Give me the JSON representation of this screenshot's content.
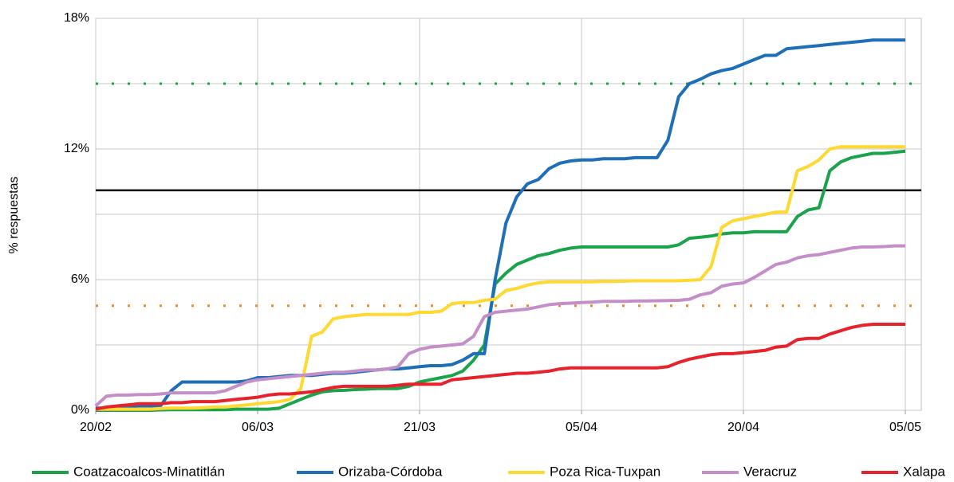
{
  "chart_data": {
    "type": "line",
    "y_label": "% respuestas",
    "categories": [
      "20/02",
      null,
      null,
      null,
      null,
      null,
      null,
      null,
      null,
      null,
      null,
      null,
      null,
      null,
      null,
      "06/03",
      null,
      null,
      null,
      null,
      null,
      null,
      null,
      null,
      null,
      null,
      null,
      null,
      null,
      null,
      "21/03",
      null,
      null,
      null,
      null,
      null,
      null,
      null,
      null,
      null,
      null,
      null,
      null,
      null,
      null,
      "05/04",
      null,
      null,
      null,
      null,
      null,
      null,
      null,
      null,
      null,
      null,
      null,
      null,
      null,
      null,
      "20/04",
      null,
      null,
      null,
      null,
      null,
      null,
      null,
      null,
      null,
      null,
      null,
      null,
      null,
      null,
      "05/05"
    ],
    "series": [
      {
        "name": "Coatzacoalcos-Minatitlán",
        "color": "#1ba34c",
        "values": [
          0,
          0,
          0,
          0,
          0,
          0,
          0.02,
          0.03,
          0.03,
          0.03,
          0.03,
          0.03,
          0.03,
          0.05,
          0.05,
          0.05,
          0.05,
          0.1,
          0.3,
          0.5,
          0.7,
          0.85,
          0.9,
          0.92,
          0.95,
          0.97,
          1.0,
          1.0,
          1.0,
          1.1,
          1.3,
          1.4,
          1.5,
          1.6,
          1.8,
          2.3,
          3.0,
          5.8,
          6.3,
          6.7,
          6.9,
          7.1,
          7.2,
          7.35,
          7.45,
          7.5,
          7.5,
          7.5,
          7.5,
          7.5,
          7.5,
          7.5,
          7.5,
          7.5,
          7.6,
          7.9,
          7.95,
          8.0,
          8.1,
          8.15,
          8.15,
          8.2,
          8.2,
          8.2,
          8.2,
          8.9,
          9.2,
          9.3,
          11.0,
          11.4,
          11.6,
          11.7,
          11.8,
          11.8,
          11.85,
          11.9
        ]
      },
      {
        "name": "Orizaba-Córdoba",
        "color": "#1f6fb8",
        "values": [
          0.1,
          0.1,
          0.1,
          0.15,
          0.2,
          0.2,
          0.2,
          0.9,
          1.3,
          1.3,
          1.3,
          1.3,
          1.3,
          1.3,
          1.35,
          1.5,
          1.5,
          1.55,
          1.6,
          1.6,
          1.6,
          1.65,
          1.7,
          1.7,
          1.75,
          1.8,
          1.85,
          1.9,
          1.9,
          1.95,
          2.0,
          2.05,
          2.05,
          2.1,
          2.3,
          2.6,
          2.6,
          6.0,
          8.6,
          9.8,
          10.4,
          10.6,
          11.1,
          11.35,
          11.45,
          11.5,
          11.5,
          11.55,
          11.55,
          11.55,
          11.6,
          11.6,
          11.6,
          12.4,
          14.4,
          15.0,
          15.2,
          15.45,
          15.6,
          15.7,
          15.9,
          16.1,
          16.3,
          16.3,
          16.6,
          16.65,
          16.7,
          16.75,
          16.8,
          16.85,
          16.9,
          16.95,
          17.0,
          17.0,
          17.0,
          17.0
        ]
      },
      {
        "name": "Poza Rica-Tuxpan",
        "color": "#ffd832",
        "values": [
          0.05,
          0.05,
          0.05,
          0.05,
          0.05,
          0.05,
          0.08,
          0.1,
          0.1,
          0.1,
          0.12,
          0.15,
          0.15,
          0.2,
          0.25,
          0.3,
          0.35,
          0.4,
          0.5,
          1.0,
          3.4,
          3.6,
          4.2,
          4.3,
          4.35,
          4.4,
          4.4,
          4.4,
          4.4,
          4.4,
          4.5,
          4.5,
          4.55,
          4.9,
          4.95,
          4.95,
          5.05,
          5.1,
          5.5,
          5.6,
          5.75,
          5.85,
          5.9,
          5.9,
          5.9,
          5.9,
          5.9,
          5.92,
          5.92,
          5.93,
          5.95,
          5.95,
          5.95,
          5.95,
          5.95,
          5.97,
          6.0,
          6.6,
          8.4,
          8.7,
          8.8,
          8.9,
          9.0,
          9.1,
          9.1,
          11.0,
          11.2,
          11.5,
          12.0,
          12.1,
          12.1,
          12.1,
          12.1,
          12.1,
          12.1,
          12.1
        ]
      },
      {
        "name": "Veracruz",
        "color": "#c48fc8",
        "values": [
          0.2,
          0.65,
          0.7,
          0.7,
          0.72,
          0.72,
          0.75,
          0.8,
          0.8,
          0.8,
          0.8,
          0.8,
          0.9,
          1.1,
          1.3,
          1.4,
          1.45,
          1.5,
          1.55,
          1.6,
          1.65,
          1.7,
          1.75,
          1.75,
          1.8,
          1.85,
          1.85,
          1.9,
          2.0,
          2.6,
          2.8,
          2.9,
          2.95,
          3.0,
          3.05,
          3.4,
          4.3,
          4.5,
          4.55,
          4.6,
          4.65,
          4.75,
          4.85,
          4.9,
          4.92,
          4.95,
          4.97,
          5.0,
          5.0,
          5.0,
          5.02,
          5.02,
          5.03,
          5.04,
          5.05,
          5.1,
          5.3,
          5.4,
          5.7,
          5.8,
          5.85,
          6.1,
          6.4,
          6.7,
          6.8,
          7.0,
          7.1,
          7.15,
          7.25,
          7.35,
          7.45,
          7.5,
          7.5,
          7.52,
          7.55,
          7.55
        ]
      },
      {
        "name": "Xalapa",
        "color": "#e8222b",
        "values": [
          0.05,
          0.15,
          0.2,
          0.25,
          0.3,
          0.3,
          0.3,
          0.35,
          0.35,
          0.4,
          0.4,
          0.4,
          0.45,
          0.5,
          0.55,
          0.6,
          0.7,
          0.75,
          0.75,
          0.8,
          0.85,
          0.95,
          1.05,
          1.1,
          1.1,
          1.1,
          1.1,
          1.1,
          1.15,
          1.2,
          1.2,
          1.2,
          1.2,
          1.4,
          1.45,
          1.5,
          1.55,
          1.6,
          1.65,
          1.7,
          1.7,
          1.75,
          1.8,
          1.9,
          1.95,
          1.95,
          1.95,
          1.95,
          1.95,
          1.95,
          1.95,
          1.95,
          1.95,
          2.0,
          2.2,
          2.35,
          2.45,
          2.55,
          2.6,
          2.6,
          2.65,
          2.7,
          2.75,
          2.9,
          2.95,
          3.25,
          3.3,
          3.3,
          3.5,
          3.65,
          3.8,
          3.9,
          3.95,
          3.95,
          3.95,
          3.95
        ]
      }
    ],
    "ylim": [
      0,
      18
    ],
    "yticks": [
      {
        "value": 0,
        "label": "0%"
      },
      {
        "value": 6,
        "label": "6%"
      },
      {
        "value": 12,
        "label": "12%"
      },
      {
        "value": 18,
        "label": "18%"
      }
    ],
    "minor_yticks": [
      3,
      9,
      15
    ],
    "reference_lines": [
      {
        "value": 10.1,
        "color": "#000000",
        "style": "solid"
      },
      {
        "value": 15,
        "color": "#1ba34c",
        "style": "dotted"
      },
      {
        "value": 4.8,
        "color": "#f0892e",
        "style": "dotted"
      }
    ],
    "grid": true,
    "legend": "bottom"
  }
}
